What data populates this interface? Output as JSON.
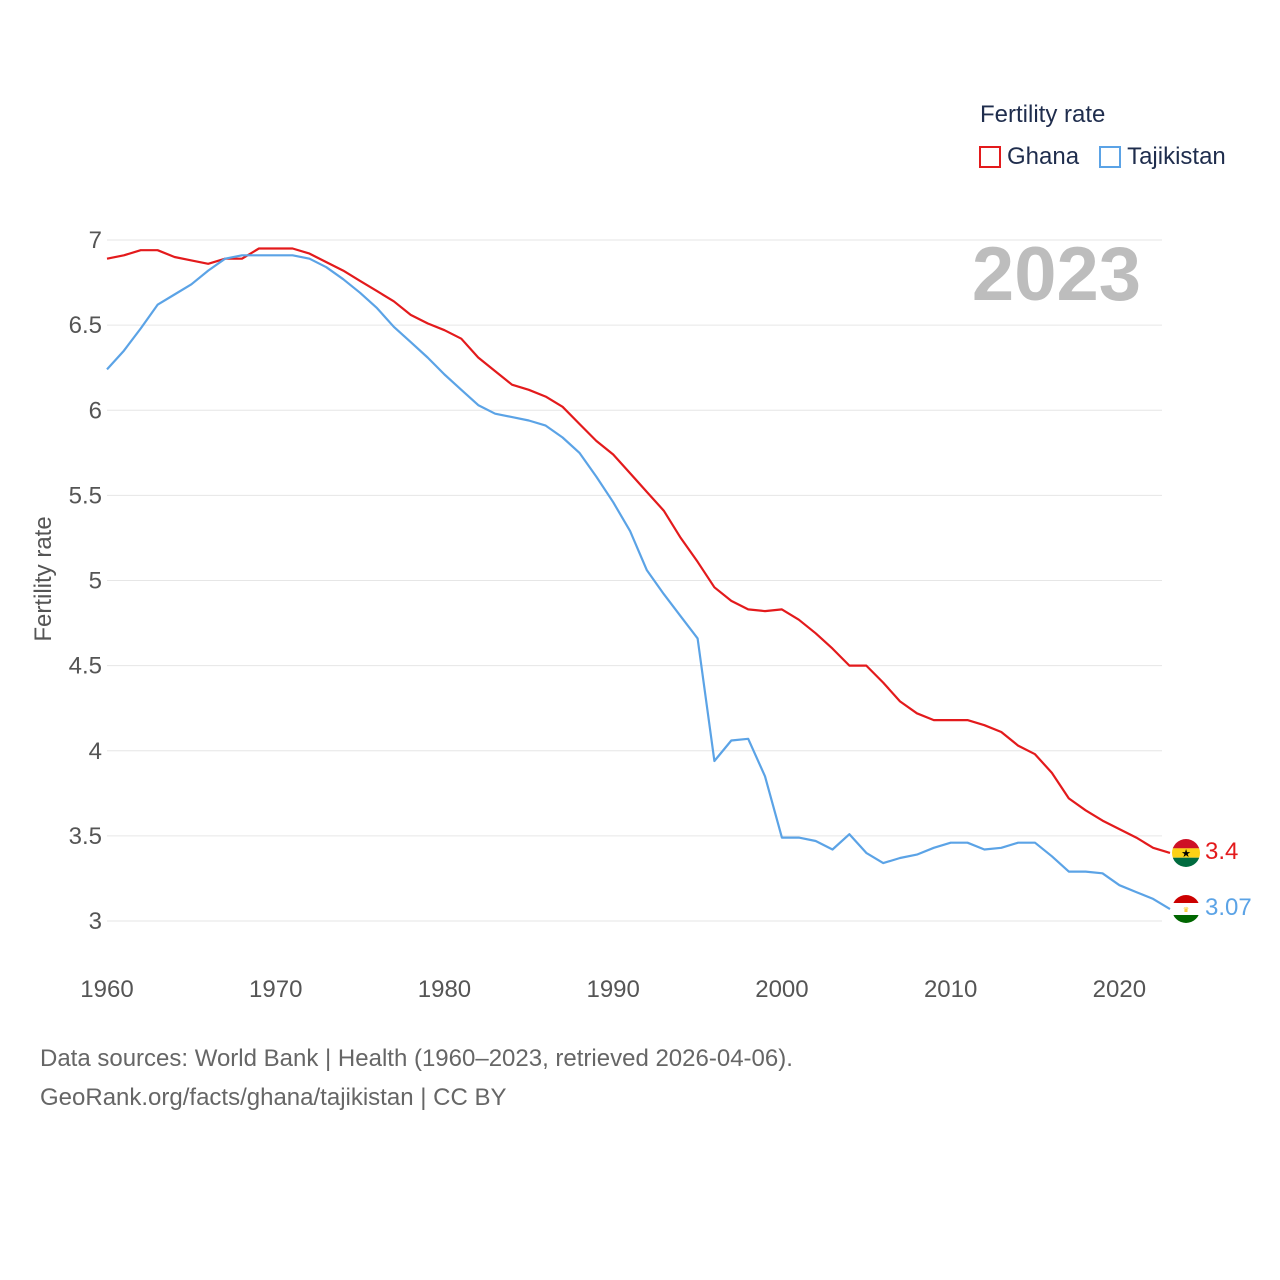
{
  "legend": {
    "title": "Fertility rate",
    "items": [
      {
        "label": "Ghana",
        "color": "#e31a1c"
      },
      {
        "label": "Tajikistan",
        "color": "#5ba3e6"
      }
    ]
  },
  "watermark_year": "2023",
  "footer": {
    "line1": "Data sources: World Bank | Health (1960–2023, retrieved 2026-04-06).",
    "line2": "GeoRank.org/facts/ghana/tajikistan | CC BY"
  },
  "chart_data": {
    "type": "line",
    "title": "Fertility rate",
    "xlabel": "",
    "ylabel": "Fertility rate",
    "xlim": [
      1960,
      2023
    ],
    "ylim": [
      2.8,
      7.1
    ],
    "x_ticks": [
      1960,
      1970,
      1980,
      1990,
      2000,
      2010,
      2020
    ],
    "y_ticks": [
      3,
      3.5,
      4,
      4.5,
      5,
      5.5,
      6,
      6.5,
      7
    ],
    "y_tick_labels": [
      "3",
      "3.5",
      "4",
      "4.5",
      "5",
      "5.5",
      "6",
      "6.5",
      "7"
    ],
    "x": [
      1960,
      1961,
      1962,
      1963,
      1964,
      1965,
      1966,
      1967,
      1968,
      1969,
      1970,
      1971,
      1972,
      1973,
      1974,
      1975,
      1976,
      1977,
      1978,
      1979,
      1980,
      1981,
      1982,
      1983,
      1984,
      1985,
      1986,
      1987,
      1988,
      1989,
      1990,
      1991,
      1992,
      1993,
      1994,
      1995,
      1996,
      1997,
      1998,
      1999,
      2000,
      2001,
      2002,
      2003,
      2004,
      2005,
      2006,
      2007,
      2008,
      2009,
      2010,
      2011,
      2012,
      2013,
      2014,
      2015,
      2016,
      2017,
      2018,
      2019,
      2020,
      2021,
      2022,
      2023
    ],
    "series": [
      {
        "name": "Ghana",
        "color": "#e31a1c",
        "end_label": "3.4",
        "values": [
          6.89,
          6.91,
          6.94,
          6.94,
          6.9,
          6.88,
          6.86,
          6.89,
          6.89,
          6.95,
          6.95,
          6.95,
          6.92,
          6.87,
          6.82,
          6.76,
          6.7,
          6.64,
          6.56,
          6.51,
          6.47,
          6.42,
          6.31,
          6.23,
          6.15,
          6.12,
          6.08,
          6.02,
          5.92,
          5.82,
          5.74,
          5.63,
          5.52,
          5.41,
          5.25,
          5.11,
          4.96,
          4.88,
          4.83,
          4.82,
          4.83,
          4.77,
          4.69,
          4.6,
          4.5,
          4.5,
          4.4,
          4.29,
          4.22,
          4.18,
          4.18,
          4.18,
          4.15,
          4.11,
          4.03,
          3.98,
          3.87,
          3.72,
          3.65,
          3.59,
          3.54,
          3.49,
          3.43,
          3.4
        ]
      },
      {
        "name": "Tajikistan",
        "color": "#5ba3e6",
        "end_label": "3.07",
        "values": [
          6.24,
          6.35,
          6.48,
          6.62,
          6.68,
          6.74,
          6.82,
          6.89,
          6.91,
          6.91,
          6.91,
          6.91,
          6.89,
          6.84,
          6.77,
          6.69,
          6.6,
          6.49,
          6.4,
          6.31,
          6.21,
          6.12,
          6.03,
          5.98,
          5.96,
          5.94,
          5.91,
          5.84,
          5.75,
          5.61,
          5.46,
          5.29,
          5.06,
          4.92,
          4.79,
          4.66,
          3.94,
          4.06,
          4.07,
          3.85,
          3.49,
          3.49,
          3.47,
          3.42,
          3.51,
          3.4,
          3.34,
          3.37,
          3.39,
          3.43,
          3.46,
          3.46,
          3.42,
          3.43,
          3.46,
          3.46,
          3.38,
          3.29,
          3.29,
          3.28,
          3.21,
          3.17,
          3.13,
          3.07
        ]
      }
    ]
  }
}
